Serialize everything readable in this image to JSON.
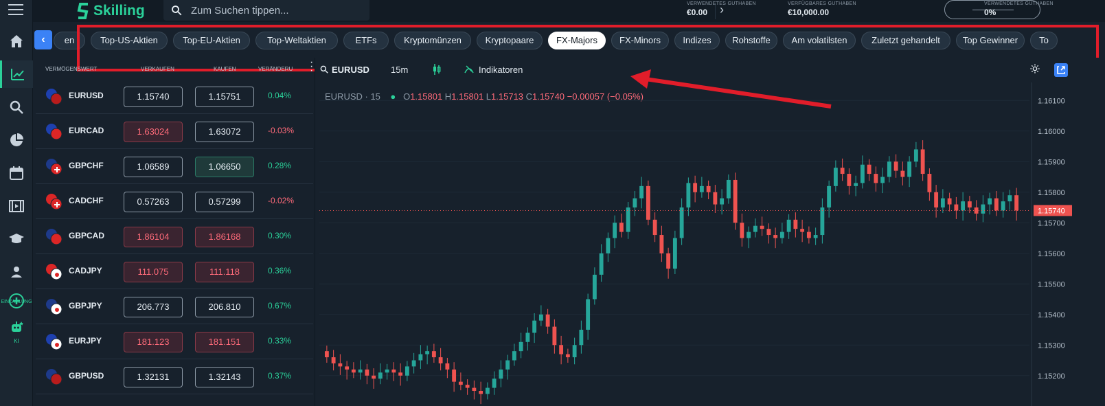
{
  "topbar": {
    "search_placeholder": "Zum Suchen tippen...",
    "logo_text": "Skilling",
    "stats": [
      {
        "label": "VERWENDETES GUTHABEN",
        "value": "€0.00"
      },
      {
        "label": "VERFÜGBARES GUTHABEN",
        "value": "€10,000.00"
      },
      {
        "label": "VERWENDETES GUTHABEN",
        "value": "0%"
      }
    ]
  },
  "nav": {
    "deposit_label": "EINZAHLUNG",
    "ai_label": "KI"
  },
  "categories": [
    "en",
    "Top-US-Aktien",
    "Top-EU-Aktien",
    "Top-Weltaktien",
    "ETFs",
    "Kryptomünzen",
    "Kryptopaare",
    "FX-Majors",
    "FX-Minors",
    "Indizes",
    "Rohstoffe",
    "Am volatilsten",
    "Zuletzt gehandelt",
    "Top Gewinner",
    "To"
  ],
  "active_category": "FX-Majors",
  "watchlist": {
    "headers": [
      "VERMÖGENSWERT",
      "VERKAUFEN",
      "KAUFEN",
      "VERÄNDERU"
    ],
    "rows": [
      {
        "symbol": "EURUSD",
        "sell": "1.15740",
        "buy": "1.15751",
        "change": "0.04%",
        "dir": "pos",
        "sell_style": "",
        "buy_style": "",
        "flags": [
          "eu",
          "us"
        ]
      },
      {
        "symbol": "EURCAD",
        "sell": "1.63024",
        "buy": "1.63072",
        "change": "-0.03%",
        "dir": "neg",
        "sell_style": "red",
        "buy_style": "",
        "flags": [
          "eu",
          "ca"
        ]
      },
      {
        "symbol": "GBPCHF",
        "sell": "1.06589",
        "buy": "1.06650",
        "change": "0.28%",
        "dir": "pos",
        "sell_style": "",
        "buy_style": "green",
        "flags": [
          "gb",
          "ch"
        ]
      },
      {
        "symbol": "CADCHF",
        "sell": "0.57263",
        "buy": "0.57299",
        "change": "-0.02%",
        "dir": "neg",
        "sell_style": "",
        "buy_style": "",
        "flags": [
          "ca",
          "ch"
        ]
      },
      {
        "symbol": "GBPCAD",
        "sell": "1.86104",
        "buy": "1.86168",
        "change": "0.30%",
        "dir": "pos",
        "sell_style": "red",
        "buy_style": "red",
        "flags": [
          "gb",
          "ca"
        ]
      },
      {
        "symbol": "CADJPY",
        "sell": "111.075",
        "buy": "111.118",
        "change": "0.36%",
        "dir": "pos",
        "sell_style": "red",
        "buy_style": "red",
        "flags": [
          "ca",
          "jp"
        ]
      },
      {
        "symbol": "GBPJPY",
        "sell": "206.773",
        "buy": "206.810",
        "change": "0.67%",
        "dir": "pos",
        "sell_style": "",
        "buy_style": "",
        "flags": [
          "gb",
          "jp"
        ]
      },
      {
        "symbol": "EURJPY",
        "sell": "181.123",
        "buy": "181.151",
        "change": "0.33%",
        "dir": "pos",
        "sell_style": "red",
        "buy_style": "red",
        "flags": [
          "eu",
          "jp"
        ]
      },
      {
        "symbol": "GBPUSD",
        "sell": "1.32131",
        "buy": "1.32143",
        "change": "0.37%",
        "dir": "pos",
        "sell_style": "",
        "buy_style": "",
        "flags": [
          "gb",
          "us"
        ]
      }
    ]
  },
  "chart": {
    "symbol": "EURUSD",
    "interval": "15m",
    "indicators_label": "Indikatoren",
    "legend_symbol": "EURUSD · 15",
    "ohlc": {
      "o": "1.15801",
      "h": "1.15801",
      "l": "1.15713",
      "c": "1.15740",
      "chg": "−0.00057 (−0.05%)"
    },
    "last_price": "1.15740",
    "y_ticks": [
      "1.16100",
      "1.16000",
      "1.15900",
      "1.15800",
      "1.15700",
      "1.15600",
      "1.15500",
      "1.15400",
      "1.15300",
      "1.15200"
    ],
    "colors": {
      "up": "#26a69a",
      "down": "#ef5350",
      "last": "#ef5350"
    }
  },
  "chart_data": {
    "type": "candlestick",
    "ylim": [
      1.1515,
      1.1615
    ],
    "closes": [
      1.1526,
      1.1524,
      1.1523,
      1.1522,
      1.1521,
      1.1522,
      1.152,
      1.1519,
      1.1521,
      1.1522,
      1.1521,
      1.152,
      1.1523,
      1.1525,
      1.1527,
      1.1528,
      1.1526,
      1.1524,
      1.1522,
      1.1518,
      1.1517,
      1.1516,
      1.1515,
      1.1514,
      1.1516,
      1.1519,
      1.1522,
      1.1525,
      1.1528,
      1.1531,
      1.1534,
      1.1538,
      1.154,
      1.1536,
      1.153,
      1.1527,
      1.1526,
      1.153,
      1.1535,
      1.1545,
      1.1553,
      1.156,
      1.1565,
      1.157,
      1.1567,
      1.1575,
      1.1578,
      1.1582,
      1.1571,
      1.1566,
      1.156,
      1.1555,
      1.1565,
      1.1575,
      1.1583,
      1.158,
      1.1582,
      1.158,
      1.1576,
      1.1578,
      1.1584,
      1.157,
      1.1565,
      1.1567,
      1.1569,
      1.1568,
      1.1566,
      1.1565,
      1.1567,
      1.1571,
      1.1568,
      1.1567,
      1.1565,
      1.1566,
      1.1575,
      1.1582,
      1.1588,
      1.1586,
      1.1582,
      1.1583,
      1.1589,
      1.1586,
      1.1583,
      1.1585,
      1.159,
      1.1587,
      1.1585,
      1.159,
      1.1594,
      1.1586,
      1.158,
      1.1575,
      1.1578,
      1.1576,
      1.1574,
      1.1577,
      1.1575,
      1.1573,
      1.1576,
      1.1578,
      1.1574,
      1.1577,
      1.1579,
      1.1574
    ]
  }
}
